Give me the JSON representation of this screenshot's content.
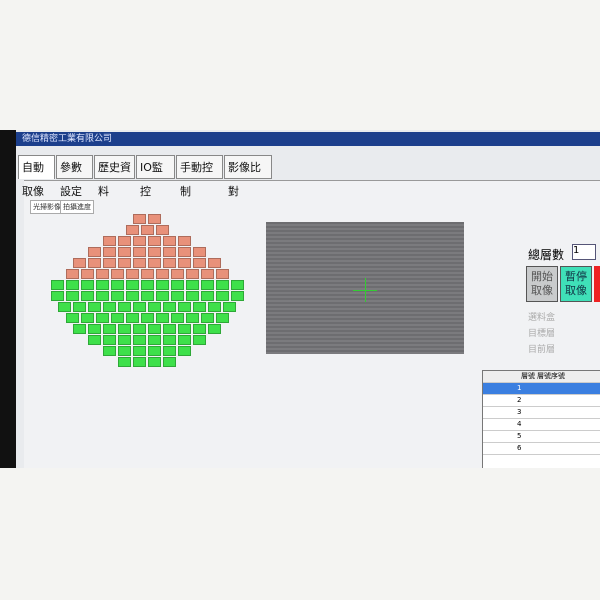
{
  "window": {
    "title": "德信精密工業有限公司"
  },
  "tabs": [
    "自動取像",
    "參數設定",
    "歷史資料",
    "IO監控",
    "手動控制",
    "影像比對"
  ],
  "subtabs": [
    "光掃影像",
    "拍攝進度"
  ],
  "panel": {
    "total_layers_label": "總層數",
    "total_layers_value": "1",
    "start_button": "開始取像",
    "pause_button": "暫停取像",
    "fields": [
      "選料盒",
      "目標層",
      "目前層"
    ]
  },
  "table": {
    "headers": [
      "層號",
      "層號序號"
    ],
    "row_numbers": [
      "1",
      "2",
      "3",
      "4",
      "5",
      "6"
    ]
  }
}
